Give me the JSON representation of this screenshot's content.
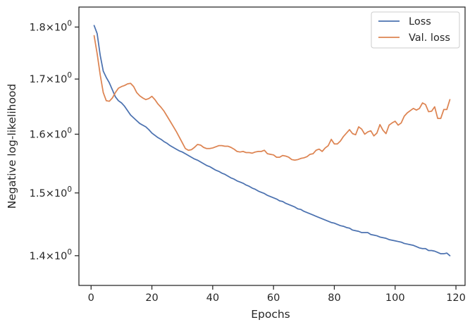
{
  "chart_data": {
    "type": "line",
    "title": "",
    "xlabel": "Epochs",
    "ylabel": "Negative log-likelihood",
    "yscale": "log",
    "xlim": [
      -4,
      123
    ],
    "ylim": [
      1.355,
      1.84
    ],
    "grid": false,
    "legend_position": "top-right",
    "x_ticks": [
      {
        "value": 0,
        "label": "0"
      },
      {
        "value": 20,
        "label": "20"
      },
      {
        "value": 40,
        "label": "40"
      },
      {
        "value": 60,
        "label": "60"
      },
      {
        "value": 80,
        "label": "80"
      },
      {
        "value": 100,
        "label": "100"
      },
      {
        "value": 120,
        "label": "120"
      }
    ],
    "y_ticks": [
      {
        "value": 1.4,
        "mantissa": "1.4",
        "base": "10",
        "exp": "0"
      },
      {
        "value": 1.5,
        "mantissa": "1.5",
        "base": "10",
        "exp": "0"
      },
      {
        "value": 1.6,
        "mantissa": "1.6",
        "base": "10",
        "exp": "0"
      },
      {
        "value": 1.7,
        "mantissa": "1.7",
        "base": "10",
        "exp": "0"
      },
      {
        "value": 1.8,
        "mantissa": "1.8",
        "base": "10",
        "exp": "0"
      }
    ],
    "series": [
      {
        "name": "Loss",
        "color": "#4c72b0",
        "points": [
          [
            1,
            1.803
          ],
          [
            2,
            1.787
          ],
          [
            3,
            1.745
          ],
          [
            4,
            1.715
          ],
          [
            5,
            1.703
          ],
          [
            6,
            1.693
          ],
          [
            7,
            1.68
          ],
          [
            8,
            1.667
          ],
          [
            9,
            1.66
          ],
          [
            10,
            1.656
          ],
          [
            11,
            1.65
          ],
          [
            12,
            1.642
          ],
          [
            13,
            1.634
          ],
          [
            14,
            1.629
          ],
          [
            15,
            1.624
          ],
          [
            16,
            1.619
          ],
          [
            17,
            1.616
          ],
          [
            18,
            1.613
          ],
          [
            19,
            1.608
          ],
          [
            20,
            1.602
          ],
          [
            21,
            1.598
          ],
          [
            22,
            1.594
          ],
          [
            23,
            1.591
          ],
          [
            24,
            1.587
          ],
          [
            25,
            1.584
          ],
          [
            26,
            1.58
          ],
          [
            27,
            1.577
          ],
          [
            28,
            1.574
          ],
          [
            29,
            1.571
          ],
          [
            30,
            1.569
          ],
          [
            31,
            1.566
          ],
          [
            32,
            1.563
          ],
          [
            33,
            1.56
          ],
          [
            34,
            1.557
          ],
          [
            35,
            1.555
          ],
          [
            36,
            1.552
          ],
          [
            37,
            1.549
          ],
          [
            38,
            1.546
          ],
          [
            39,
            1.544
          ],
          [
            40,
            1.541
          ],
          [
            41,
            1.538
          ],
          [
            42,
            1.536
          ],
          [
            43,
            1.533
          ],
          [
            44,
            1.531
          ],
          [
            45,
            1.528
          ],
          [
            46,
            1.525
          ],
          [
            47,
            1.523
          ],
          [
            48,
            1.52
          ],
          [
            49,
            1.518
          ],
          [
            50,
            1.516
          ],
          [
            51,
            1.513
          ],
          [
            52,
            1.511
          ],
          [
            53,
            1.508
          ],
          [
            54,
            1.506
          ],
          [
            55,
            1.503
          ],
          [
            56,
            1.501
          ],
          [
            57,
            1.499
          ],
          [
            58,
            1.496
          ],
          [
            59,
            1.494
          ],
          [
            60,
            1.492
          ],
          [
            61,
            1.49
          ],
          [
            62,
            1.487
          ],
          [
            63,
            1.486
          ],
          [
            64,
            1.483
          ],
          [
            65,
            1.481
          ],
          [
            66,
            1.479
          ],
          [
            67,
            1.477
          ],
          [
            68,
            1.474
          ],
          [
            69,
            1.473
          ],
          [
            70,
            1.47
          ],
          [
            71,
            1.468
          ],
          [
            72,
            1.466
          ],
          [
            73,
            1.464
          ],
          [
            74,
            1.462
          ],
          [
            75,
            1.46
          ],
          [
            76,
            1.458
          ],
          [
            77,
            1.456
          ],
          [
            78,
            1.454
          ],
          [
            79,
            1.452
          ],
          [
            80,
            1.451
          ],
          [
            81,
            1.449
          ],
          [
            82,
            1.447
          ],
          [
            83,
            1.446
          ],
          [
            84,
            1.444
          ],
          [
            85,
            1.443
          ],
          [
            86,
            1.44
          ],
          [
            87,
            1.439
          ],
          [
            88,
            1.438
          ],
          [
            89,
            1.436
          ],
          [
            90,
            1.436
          ],
          [
            91,
            1.436
          ],
          [
            92,
            1.433
          ],
          [
            93,
            1.432
          ],
          [
            94,
            1.431
          ],
          [
            95,
            1.429
          ],
          [
            96,
            1.428
          ],
          [
            97,
            1.427
          ],
          [
            98,
            1.425
          ],
          [
            99,
            1.424
          ],
          [
            100,
            1.423
          ],
          [
            101,
            1.422
          ],
          [
            102,
            1.421
          ],
          [
            103,
            1.419
          ],
          [
            104,
            1.418
          ],
          [
            105,
            1.417
          ],
          [
            106,
            1.416
          ],
          [
            107,
            1.414
          ],
          [
            108,
            1.412
          ],
          [
            109,
            1.411
          ],
          [
            110,
            1.411
          ],
          [
            111,
            1.408
          ],
          [
            112,
            1.408
          ],
          [
            113,
            1.407
          ],
          [
            114,
            1.405
          ],
          [
            115,
            1.403
          ],
          [
            116,
            1.403
          ],
          [
            117,
            1.404
          ],
          [
            118,
            1.4
          ]
        ]
      },
      {
        "name": "Val. loss",
        "color": "#dd8452",
        "points": [
          [
            1,
            1.783
          ],
          [
            2,
            1.748
          ],
          [
            3,
            1.708
          ],
          [
            4,
            1.675
          ],
          [
            5,
            1.66
          ],
          [
            6,
            1.659
          ],
          [
            7,
            1.665
          ],
          [
            8,
            1.675
          ],
          [
            9,
            1.683
          ],
          [
            10,
            1.686
          ],
          [
            11,
            1.688
          ],
          [
            12,
            1.691
          ],
          [
            13,
            1.692
          ],
          [
            14,
            1.686
          ],
          [
            15,
            1.675
          ],
          [
            16,
            1.669
          ],
          [
            17,
            1.665
          ],
          [
            18,
            1.662
          ],
          [
            19,
            1.664
          ],
          [
            20,
            1.668
          ],
          [
            21,
            1.662
          ],
          [
            22,
            1.654
          ],
          [
            23,
            1.648
          ],
          [
            24,
            1.641
          ],
          [
            25,
            1.632
          ],
          [
            26,
            1.623
          ],
          [
            27,
            1.614
          ],
          [
            28,
            1.605
          ],
          [
            29,
            1.595
          ],
          [
            30,
            1.585
          ],
          [
            31,
            1.575
          ],
          [
            32,
            1.572
          ],
          [
            33,
            1.573
          ],
          [
            34,
            1.577
          ],
          [
            35,
            1.582
          ],
          [
            36,
            1.581
          ],
          [
            37,
            1.577
          ],
          [
            38,
            1.575
          ],
          [
            39,
            1.575
          ],
          [
            40,
            1.576
          ],
          [
            41,
            1.578
          ],
          [
            42,
            1.58
          ],
          [
            43,
            1.58
          ],
          [
            44,
            1.579
          ],
          [
            45,
            1.579
          ],
          [
            46,
            1.577
          ],
          [
            47,
            1.574
          ],
          [
            48,
            1.57
          ],
          [
            49,
            1.569
          ],
          [
            50,
            1.57
          ],
          [
            51,
            1.568
          ],
          [
            52,
            1.568
          ],
          [
            53,
            1.567
          ],
          [
            54,
            1.569
          ],
          [
            55,
            1.57
          ],
          [
            56,
            1.57
          ],
          [
            57,
            1.572
          ],
          [
            58,
            1.566
          ],
          [
            59,
            1.565
          ],
          [
            60,
            1.564
          ],
          [
            61,
            1.56
          ],
          [
            62,
            1.56
          ],
          [
            63,
            1.563
          ],
          [
            64,
            1.562
          ],
          [
            65,
            1.56
          ],
          [
            66,
            1.556
          ],
          [
            67,
            1.555
          ],
          [
            68,
            1.556
          ],
          [
            69,
            1.558
          ],
          [
            70,
            1.559
          ],
          [
            71,
            1.561
          ],
          [
            72,
            1.565
          ],
          [
            73,
            1.566
          ],
          [
            74,
            1.572
          ],
          [
            75,
            1.574
          ],
          [
            76,
            1.57
          ],
          [
            77,
            1.576
          ],
          [
            78,
            1.58
          ],
          [
            79,
            1.591
          ],
          [
            80,
            1.583
          ],
          [
            81,
            1.583
          ],
          [
            82,
            1.588
          ],
          [
            83,
            1.596
          ],
          [
            84,
            1.602
          ],
          [
            85,
            1.608
          ],
          [
            86,
            1.601
          ],
          [
            87,
            1.599
          ],
          [
            88,
            1.613
          ],
          [
            89,
            1.609
          ],
          [
            90,
            1.6
          ],
          [
            91,
            1.604
          ],
          [
            92,
            1.606
          ],
          [
            93,
            1.597
          ],
          [
            94,
            1.602
          ],
          [
            95,
            1.617
          ],
          [
            96,
            1.607
          ],
          [
            97,
            1.601
          ],
          [
            98,
            1.616
          ],
          [
            99,
            1.62
          ],
          [
            100,
            1.623
          ],
          [
            101,
            1.616
          ],
          [
            102,
            1.62
          ],
          [
            103,
            1.632
          ],
          [
            104,
            1.638
          ],
          [
            105,
            1.642
          ],
          [
            106,
            1.646
          ],
          [
            107,
            1.643
          ],
          [
            108,
            1.646
          ],
          [
            109,
            1.656
          ],
          [
            110,
            1.653
          ],
          [
            111,
            1.64
          ],
          [
            112,
            1.641
          ],
          [
            113,
            1.649
          ],
          [
            114,
            1.628
          ],
          [
            115,
            1.628
          ],
          [
            116,
            1.644
          ],
          [
            117,
            1.644
          ],
          [
            118,
            1.662
          ]
        ]
      }
    ]
  }
}
